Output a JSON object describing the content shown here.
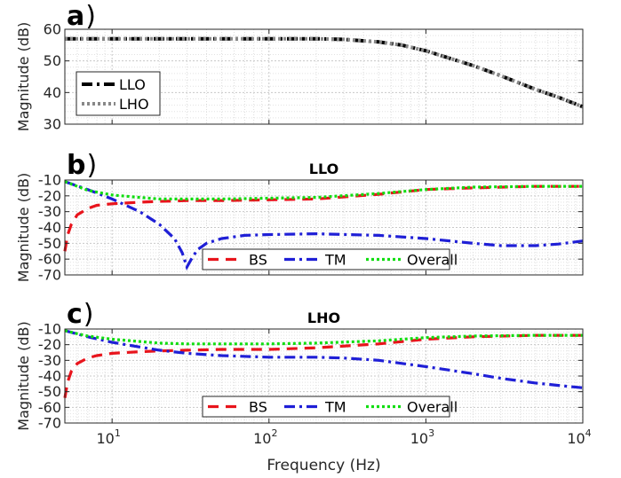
{
  "chart_data": [
    {
      "type": "line",
      "panel_label": "a",
      "title": "",
      "xlabel": "",
      "ylabel": "Magnitude (dB)",
      "xscale": "log",
      "xlim": [
        5,
        10000
      ],
      "ylim": [
        30,
        60
      ],
      "yticks": [
        "30",
        "40",
        "50",
        "60"
      ],
      "grid": true,
      "legend": "bottom-left",
      "series": [
        {
          "name": "LLO",
          "color": "#000000",
          "style": "dash-dot",
          "x": [
            5,
            10,
            30,
            100,
            200,
            300,
            500,
            700,
            1000,
            2000,
            3000,
            5000,
            7000,
            10000
          ],
          "y": [
            57,
            57,
            57,
            57,
            57,
            56.8,
            56,
            55,
            53.2,
            48.5,
            45.3,
            41,
            38.5,
            35.5
          ]
        },
        {
          "name": "LHO",
          "color": "#888888",
          "style": "dotted",
          "x": [
            5,
            10,
            30,
            100,
            200,
            300,
            500,
            700,
            1000,
            2000,
            3000,
            5000,
            7000,
            10000
          ],
          "y": [
            57,
            57,
            57,
            57,
            57,
            56.8,
            56,
            55,
            53.2,
            48.5,
            45.3,
            41,
            38.5,
            35.5
          ]
        }
      ]
    },
    {
      "type": "line",
      "panel_label": "b",
      "title": "LLO",
      "xlabel": "",
      "ylabel": "Magnitude (dB)",
      "xscale": "log",
      "xlim": [
        5,
        10000
      ],
      "ylim": [
        -70,
        -10
      ],
      "yticks": [
        "-70",
        "-60",
        "-50",
        "-40",
        "-30",
        "-20",
        "-10"
      ],
      "grid": true,
      "legend": "bottom-right",
      "series": [
        {
          "name": "BS",
          "color": "#e8141c",
          "style": "dashed",
          "x": [
            5,
            5.2,
            5.5,
            6,
            7,
            8,
            10,
            15,
            20,
            30,
            50,
            100,
            200,
            500,
            1000,
            2000,
            5000,
            10000
          ],
          "y": [
            -55,
            -45,
            -38,
            -32,
            -28,
            -26,
            -25,
            -24,
            -23.5,
            -23,
            -23,
            -22.5,
            -22,
            -19,
            -16,
            -15,
            -14,
            -14
          ]
        },
        {
          "name": "TM",
          "color": "#1f1fd6",
          "style": "dash-dot",
          "x": [
            5,
            7,
            10,
            15,
            20,
            25,
            28,
            30,
            32,
            35,
            40,
            50,
            70,
            100,
            200,
            500,
            1000,
            2000,
            3000,
            5000,
            7000,
            10000
          ],
          "y": [
            -11,
            -16,
            -22,
            -30,
            -38,
            -47,
            -56,
            -65,
            -60,
            -54,
            -50,
            -47,
            -45,
            -44.5,
            -44,
            -45,
            -47,
            -50,
            -51.5,
            -51.5,
            -50.5,
            -48.5
          ]
        },
        {
          "name": "Overall",
          "color": "#11dd11",
          "style": "dotted",
          "x": [
            5,
            6,
            7,
            10,
            15,
            20,
            30,
            50,
            100,
            200,
            500,
            1000,
            2000,
            5000,
            10000
          ],
          "y": [
            -11,
            -14,
            -16.5,
            -19.5,
            -21,
            -22,
            -22,
            -22,
            -21.5,
            -21,
            -18.5,
            -16,
            -14.5,
            -14,
            -14
          ]
        }
      ]
    },
    {
      "type": "line",
      "panel_label": "c",
      "title": "LHO",
      "xlabel": "Frequency (Hz)",
      "ylabel": "Magnitude (dB)",
      "xscale": "log",
      "xlim": [
        5,
        10000
      ],
      "ylim": [
        -70,
        -10
      ],
      "yticks": [
        "-70",
        "-60",
        "-50",
        "-40",
        "-30",
        "-20",
        "-10"
      ],
      "xticks": [
        10,
        100,
        1000,
        10000
      ],
      "grid": true,
      "legend": "bottom-right",
      "series": [
        {
          "name": "BS",
          "color": "#e8141c",
          "style": "dashed",
          "x": [
            5,
            5.2,
            5.5,
            6,
            7,
            8,
            10,
            15,
            20,
            30,
            50,
            100,
            200,
            500,
            1000,
            2000,
            5000,
            10000
          ],
          "y": [
            -54,
            -44,
            -37,
            -32,
            -28.5,
            -27,
            -25.5,
            -24.5,
            -24,
            -23.5,
            -23,
            -23,
            -22,
            -19.5,
            -16.5,
            -15,
            -14,
            -14
          ]
        },
        {
          "name": "TM",
          "color": "#1f1fd6",
          "style": "dash-dot",
          "x": [
            5,
            7,
            10,
            15,
            20,
            30,
            50,
            100,
            200,
            300,
            500,
            1000,
            2000,
            3000,
            5000,
            7000,
            10000
          ],
          "y": [
            -11,
            -15,
            -18.5,
            -21.5,
            -23.5,
            -25.5,
            -27,
            -28,
            -28,
            -28.5,
            -30,
            -34,
            -38.5,
            -41.5,
            -44.5,
            -46,
            -47.5
          ]
        },
        {
          "name": "Overall",
          "color": "#11dd11",
          "style": "dotted",
          "x": [
            5,
            6,
            7,
            10,
            15,
            20,
            30,
            50,
            100,
            200,
            500,
            1000,
            2000,
            5000,
            10000
          ],
          "y": [
            -11,
            -13,
            -14.5,
            -16.5,
            -18,
            -19,
            -19.5,
            -19.5,
            -19.5,
            -19,
            -17.5,
            -15.5,
            -14.5,
            -14,
            -14
          ]
        }
      ]
    }
  ]
}
